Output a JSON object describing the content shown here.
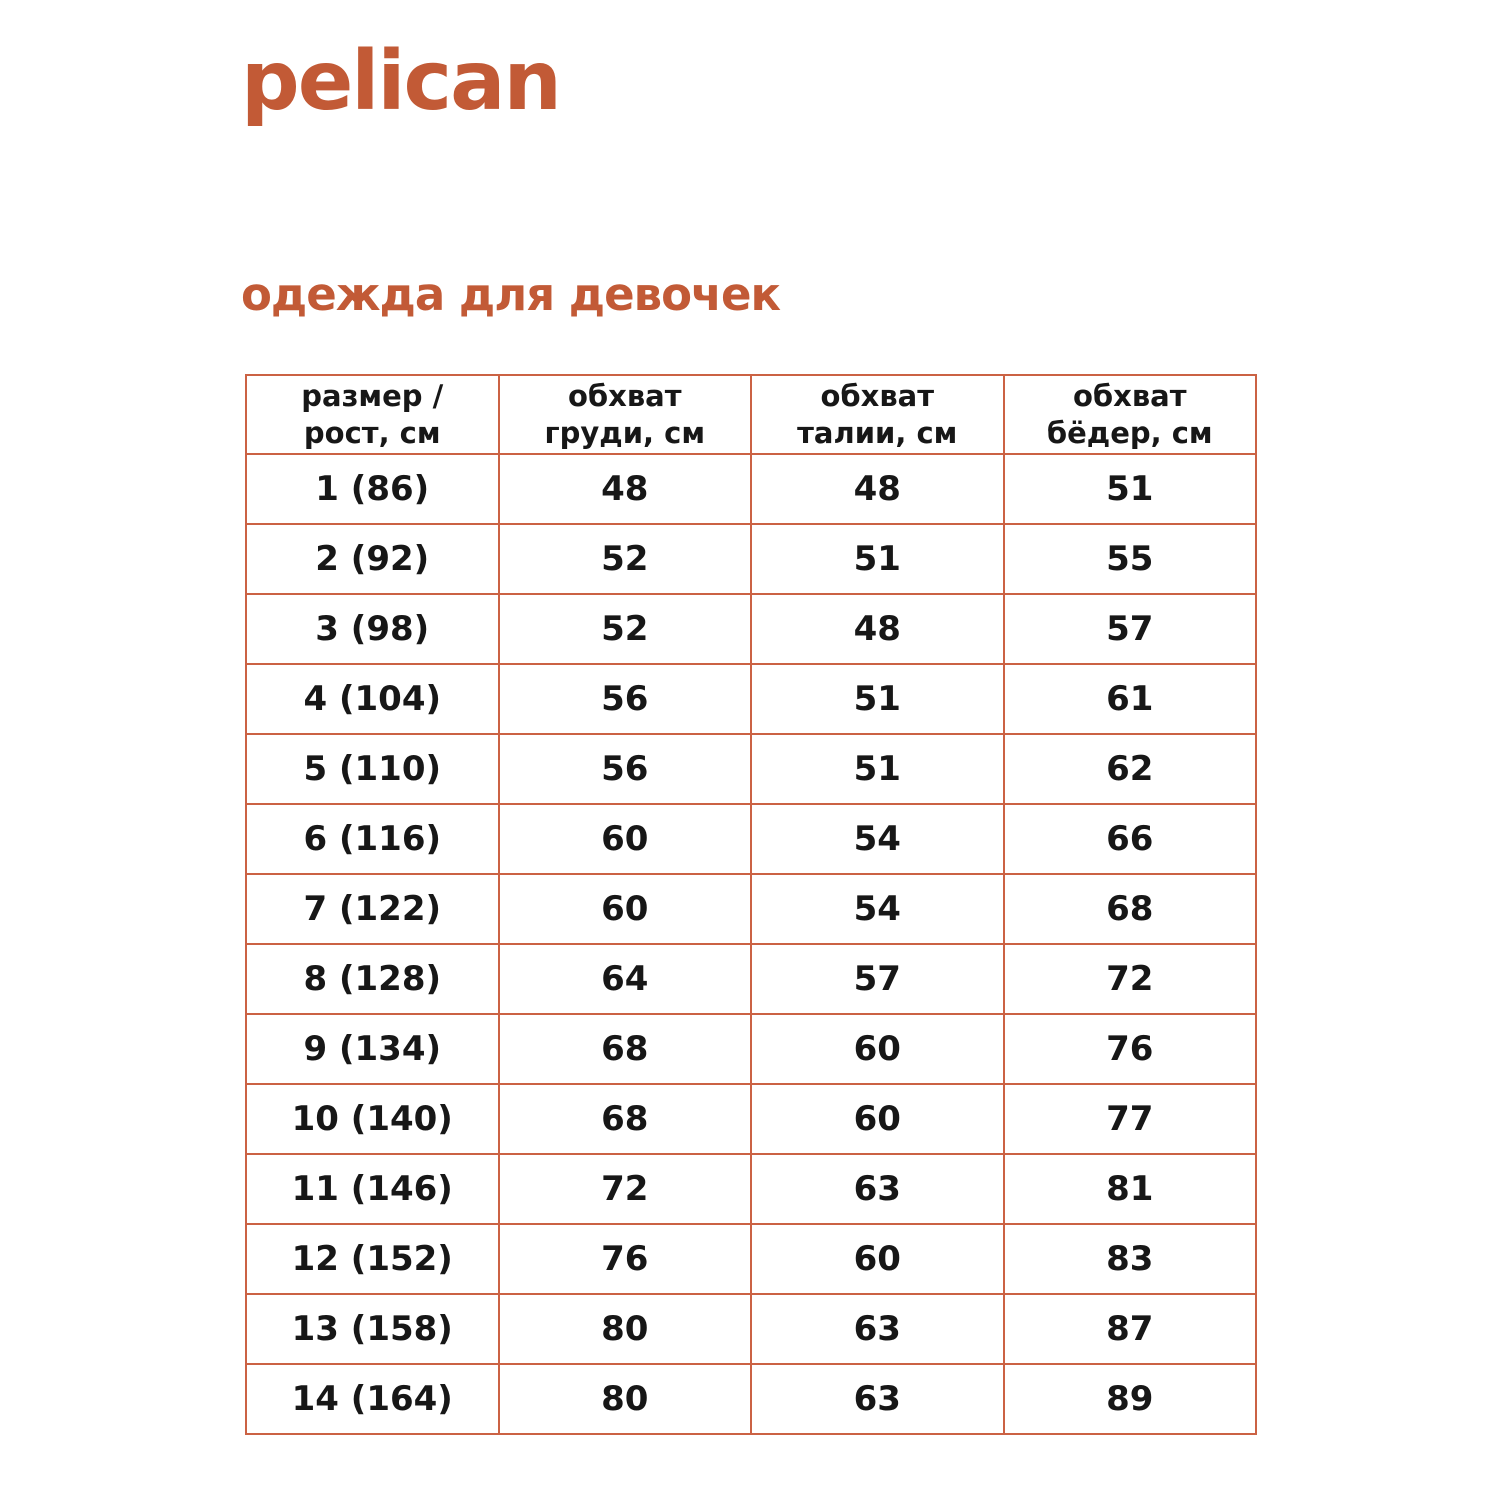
{
  "logo": "pelican",
  "page_title": "одежда для девочек",
  "colors": {
    "accent": "#c25a36",
    "table_border": "#cb6244",
    "text": "#171717"
  },
  "table": {
    "headers": [
      [
        "размер /",
        "рост, см"
      ],
      [
        "обхват",
        "груди, см"
      ],
      [
        "обхват",
        "талии, см"
      ],
      [
        "обхват",
        "бёдер, см"
      ]
    ],
    "rows": [
      [
        "1 (86)",
        "48",
        "48",
        "51"
      ],
      [
        "2 (92)",
        "52",
        "51",
        "55"
      ],
      [
        "3 (98)",
        "52",
        "48",
        "57"
      ],
      [
        "4 (104)",
        "56",
        "51",
        "61"
      ],
      [
        "5 (110)",
        "56",
        "51",
        "62"
      ],
      [
        "6 (116)",
        "60",
        "54",
        "66"
      ],
      [
        "7 (122)",
        "60",
        "54",
        "68"
      ],
      [
        "8 (128)",
        "64",
        "57",
        "72"
      ],
      [
        "9 (134)",
        "68",
        "60",
        "76"
      ],
      [
        "10 (140)",
        "68",
        "60",
        "77"
      ],
      [
        "11 (146)",
        "72",
        "63",
        "81"
      ],
      [
        "12 (152)",
        "76",
        "60",
        "83"
      ],
      [
        "13 (158)",
        "80",
        "63",
        "87"
      ],
      [
        "14 (164)",
        "80",
        "63",
        "89"
      ]
    ]
  }
}
